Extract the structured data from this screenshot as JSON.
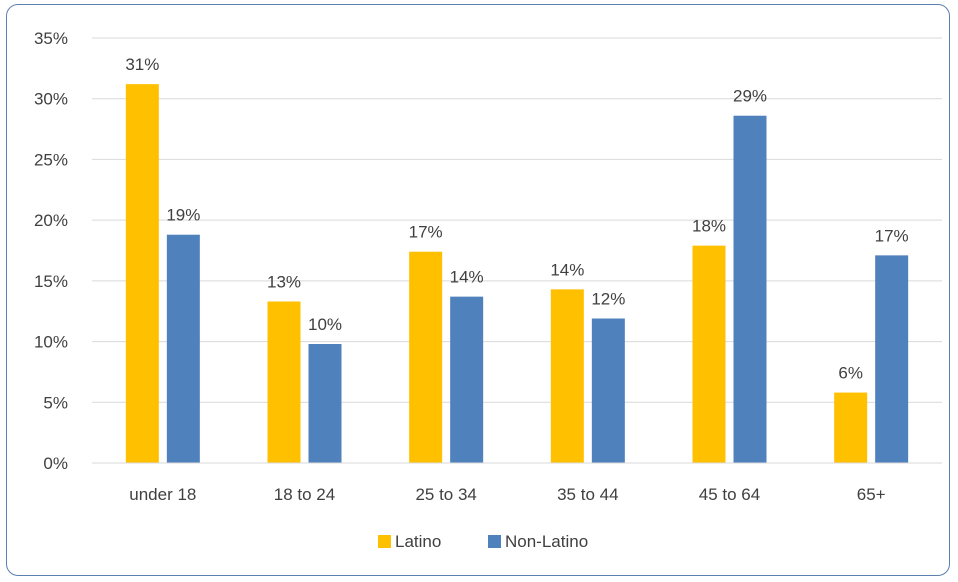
{
  "chart_data": {
    "type": "bar",
    "title": "",
    "xlabel": "",
    "ylabel": "",
    "categories": [
      "under 18",
      "18 to 24",
      "25 to 34",
      "35 to 44",
      "45 to 64",
      "65+"
    ],
    "series": [
      {
        "name": "Latino",
        "color": "#ffc000",
        "values": [
          31.2,
          13.3,
          17.4,
          14.3,
          17.9,
          5.8
        ],
        "labels": [
          "31%",
          "13%",
          "17%",
          "14%",
          "18%",
          "6%"
        ]
      },
      {
        "name": "Non-Latino",
        "color": "#4f81bd",
        "values": [
          18.8,
          9.8,
          13.7,
          11.9,
          28.6,
          17.1
        ],
        "labels": [
          "19%",
          "10%",
          "14%",
          "12%",
          "29%",
          "17%"
        ]
      }
    ],
    "ylim": [
      0,
      35
    ],
    "yticks": [
      0,
      5,
      10,
      15,
      20,
      25,
      30,
      35
    ],
    "ytick_labels": [
      "0%",
      "5%",
      "10%",
      "15%",
      "20%",
      "25%",
      "30%",
      "35%"
    ],
    "grid": true,
    "legend_position": "bottom"
  }
}
